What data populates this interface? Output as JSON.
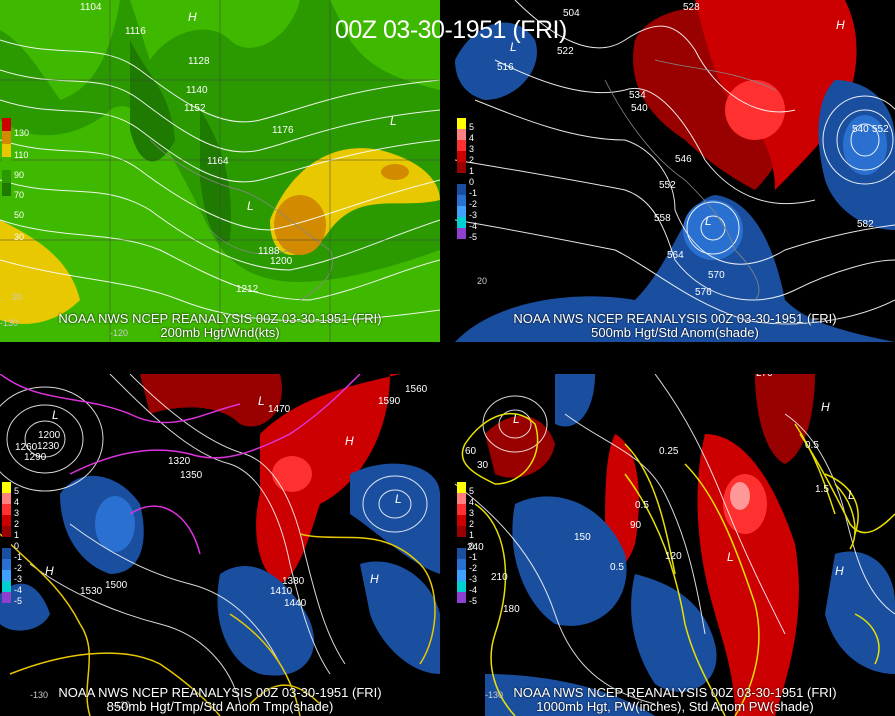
{
  "title": "00Z 03-30-1951 (FRI)",
  "source": "NOAA NWS NCEP REANALYSIS 00Z 03-30-1951 (FRI)",
  "panels": [
    {
      "subtitle": "200mb Hgt/Wnd(kts)",
      "legend": [
        "130",
        "110",
        "90",
        "70",
        "50",
        "30"
      ],
      "legend_colors": [
        "#cc0000",
        "#d28a00",
        "#e8c800",
        "#3fb800",
        "#2a9a00",
        "#1e7a00"
      ],
      "contour_labels": [
        "1104",
        "1116",
        "1128",
        "1140",
        "1152",
        "1164",
        "1176",
        "1188",
        "1200",
        "1212"
      ],
      "highs": [
        "H"
      ],
      "lows": [
        "L",
        "L"
      ],
      "ticks": [
        "-120",
        "-130",
        "20"
      ]
    },
    {
      "subtitle": "500mb Hgt/Std Anom(shade)",
      "legend": [
        "5",
        "4",
        "3",
        "2",
        "1",
        "0",
        "-1",
        "-2",
        "-3",
        "-4",
        "-5"
      ],
      "legend_colors": [
        "#ffff00",
        "#ff8080",
        "#ff3030",
        "#cc0000",
        "#990000",
        "#000000",
        "#1a4fa0",
        "#2a70d0",
        "#40a0ff",
        "#00d0d0",
        "#9040d0"
      ],
      "contour_labels": [
        "504",
        "516",
        "522",
        "528",
        "534",
        "540",
        "546",
        "552",
        "558",
        "564",
        "570",
        "576",
        "582",
        "540",
        "552"
      ],
      "highs": [
        "H"
      ],
      "lows": [
        "L",
        "L"
      ],
      "ticks": [
        "20"
      ]
    },
    {
      "subtitle": "850mb Hgt/Tmp/Std Anom Tmp(shade)",
      "legend": [
        "5",
        "4",
        "3",
        "2",
        "1",
        "0",
        "-1",
        "-2",
        "-3",
        "-4",
        "-5"
      ],
      "legend_colors": [
        "#ffff00",
        "#ff8080",
        "#ff3030",
        "#cc0000",
        "#990000",
        "#000000",
        "#1a4fa0",
        "#2a70d0",
        "#40a0ff",
        "#00d0d0",
        "#9040d0"
      ],
      "contour_labels": [
        "1200",
        "1230",
        "1260",
        "1290",
        "1320",
        "1350",
        "1380",
        "1410",
        "1440",
        "1470",
        "1500",
        "1530",
        "1560",
        "1590"
      ],
      "highs": [
        "H",
        "H",
        "H"
      ],
      "lows": [
        "L",
        "L",
        "L"
      ],
      "ticks": [
        "-130",
        "-120"
      ]
    },
    {
      "subtitle": "1000mb Hgt, PW(inches), Std Anom PW(shade)",
      "legend": [
        "5",
        "4",
        "3",
        "2",
        "1",
        "0",
        "-1",
        "-2",
        "-3",
        "-4",
        "-5"
      ],
      "legend_colors": [
        "#ffff00",
        "#ff8080",
        "#ff3030",
        "#cc0000",
        "#990000",
        "#000000",
        "#1a4fa0",
        "#2a70d0",
        "#40a0ff",
        "#00d0d0",
        "#9040d0"
      ],
      "contour_labels": [
        "30",
        "60",
        "90",
        "120",
        "150",
        "180",
        "210",
        "240",
        "270",
        "0.25",
        "0.5",
        "1.5",
        "0.5",
        "0.5"
      ],
      "highs": [
        "H",
        "H"
      ],
      "lows": [
        "L",
        "L",
        "L"
      ],
      "ticks": [
        "-130"
      ]
    }
  ]
}
